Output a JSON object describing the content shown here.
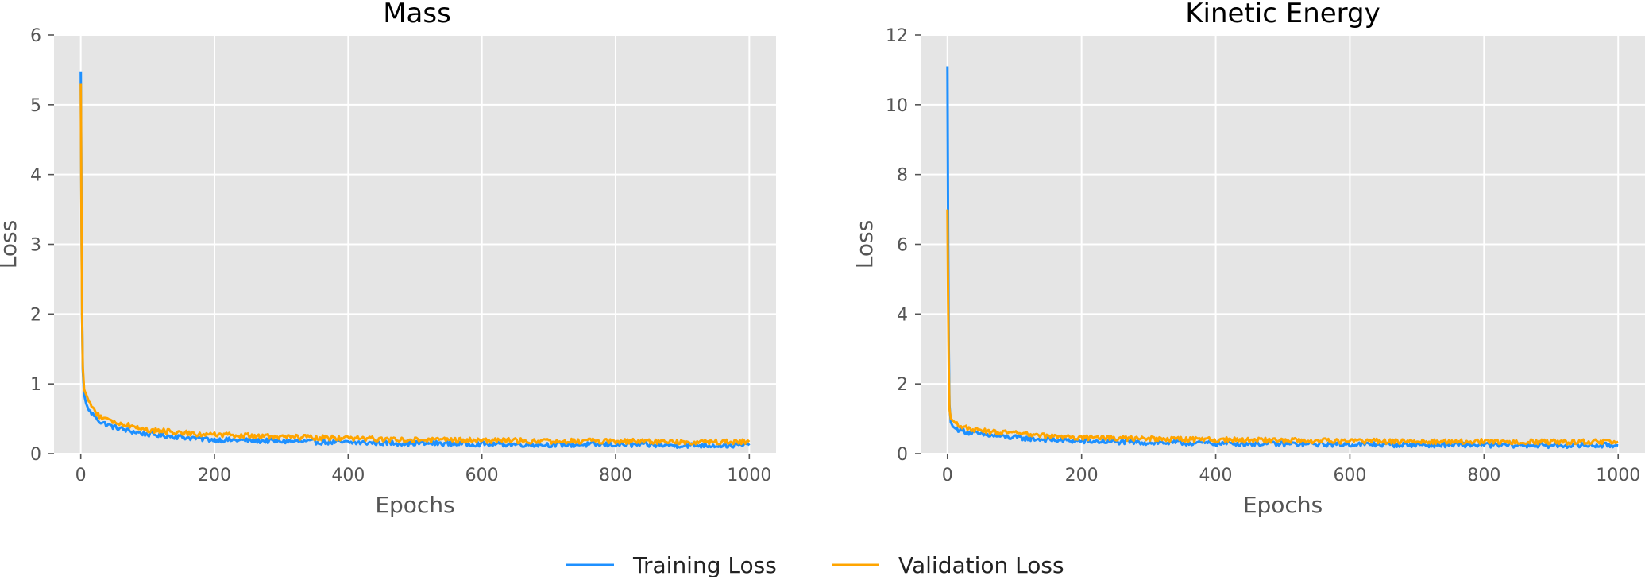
{
  "legend": {
    "entries": [
      {
        "label": "Training Loss",
        "color": "#1e90ff"
      },
      {
        "label": "Validation Loss",
        "color": "#ffa500"
      }
    ],
    "placement": "bottom-center"
  },
  "chart_data": [
    {
      "type": "line",
      "title": "Mass",
      "xlabel": "Epochs",
      "ylabel": "Loss",
      "xlim": [
        -40,
        1040
      ],
      "ylim": [
        0,
        6
      ],
      "xticks": [
        0,
        200,
        400,
        600,
        800,
        1000
      ],
      "yticks": [
        0,
        1,
        2,
        3,
        4,
        5,
        6
      ],
      "grid": true,
      "x": [
        0,
        1,
        2,
        3,
        5,
        8,
        12,
        20,
        30,
        50,
        75,
        100,
        150,
        200,
        300,
        400,
        500,
        600,
        700,
        800,
        900,
        1000
      ],
      "series": [
        {
          "name": "Training Loss",
          "color": "#1e90ff",
          "values": [
            5.48,
            3.6,
            2.0,
            1.2,
            0.85,
            0.72,
            0.62,
            0.55,
            0.45,
            0.38,
            0.32,
            0.28,
            0.24,
            0.2,
            0.18,
            0.16,
            0.15,
            0.14,
            0.13,
            0.13,
            0.12,
            0.12
          ]
        },
        {
          "name": "Validation Loss",
          "color": "#ffa500",
          "values": [
            5.3,
            3.5,
            2.0,
            1.25,
            0.92,
            0.85,
            0.75,
            0.62,
            0.52,
            0.45,
            0.4,
            0.34,
            0.3,
            0.27,
            0.24,
            0.22,
            0.2,
            0.19,
            0.18,
            0.18,
            0.17,
            0.17
          ]
        }
      ]
    },
    {
      "type": "line",
      "title": "Kinetic Energy",
      "xlabel": "Epochs",
      "ylabel": "Loss",
      "xlim": [
        -40,
        1040
      ],
      "ylim": [
        0,
        12
      ],
      "xticks": [
        0,
        200,
        400,
        600,
        800,
        1000
      ],
      "yticks": [
        0,
        2,
        4,
        6,
        8,
        10,
        12
      ],
      "grid": true,
      "x": [
        0,
        1,
        2,
        3,
        5,
        8,
        12,
        20,
        30,
        50,
        75,
        100,
        150,
        200,
        300,
        400,
        500,
        600,
        700,
        800,
        900,
        1000
      ],
      "series": [
        {
          "name": "Training Loss",
          "color": "#1e90ff",
          "values": [
            11.1,
            6.5,
            3.0,
            1.4,
            0.9,
            0.78,
            0.72,
            0.68,
            0.62,
            0.55,
            0.5,
            0.46,
            0.4,
            0.36,
            0.32,
            0.3,
            0.28,
            0.27,
            0.26,
            0.25,
            0.24,
            0.24
          ]
        },
        {
          "name": "Validation Loss",
          "color": "#ffa500",
          "values": [
            7.0,
            4.5,
            2.4,
            1.3,
            1.0,
            0.95,
            0.88,
            0.8,
            0.72,
            0.65,
            0.62,
            0.58,
            0.5,
            0.46,
            0.42,
            0.4,
            0.38,
            0.36,
            0.35,
            0.35,
            0.34,
            0.34
          ]
        }
      ]
    }
  ]
}
